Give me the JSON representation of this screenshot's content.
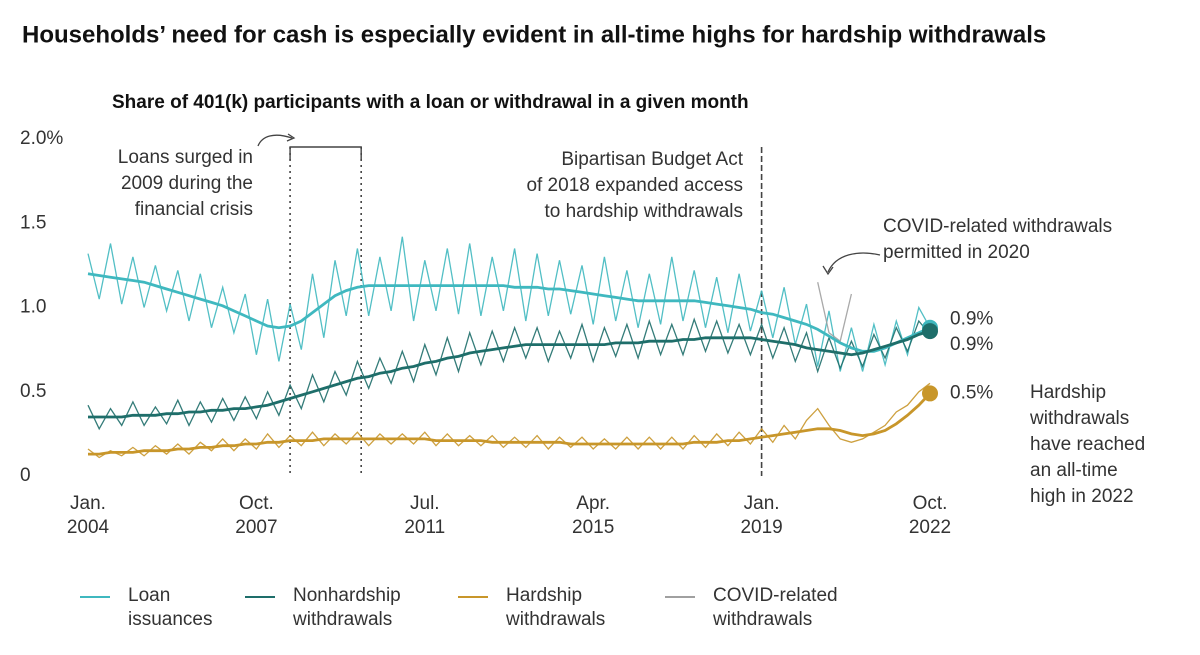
{
  "chart_data": {
    "type": "line",
    "title": "Households’ need for cash is especially evident in all-time highs for hardship withdrawals",
    "subtitle": "Share of 401(k) participants with a loan or withdrawal in a given month",
    "x": [
      2004,
      2004.25,
      2004.5,
      2004.75,
      2005,
      2005.25,
      2005.5,
      2005.75,
      2006,
      2006.25,
      2006.5,
      2006.75,
      2007,
      2007.25,
      2007.5,
      2007.75,
      2008,
      2008.25,
      2008.5,
      2008.75,
      2009,
      2009.25,
      2009.5,
      2009.75,
      2010,
      2010.25,
      2010.5,
      2010.75,
      2011,
      2011.25,
      2011.5,
      2011.75,
      2012,
      2012.25,
      2012.5,
      2012.75,
      2013,
      2013.25,
      2013.5,
      2013.75,
      2014,
      2014.25,
      2014.5,
      2014.75,
      2015,
      2015.25,
      2015.5,
      2015.75,
      2016,
      2016.25,
      2016.5,
      2016.75,
      2017,
      2017.25,
      2017.5,
      2017.75,
      2018,
      2018.25,
      2018.5,
      2018.75,
      2019,
      2019.25,
      2019.5,
      2019.75,
      2020,
      2020.25,
      2020.5,
      2020.75,
      2021,
      2021.25,
      2021.5,
      2021.75,
      2022,
      2022.25,
      2022.5,
      2022.75
    ],
    "xlim": [
      2004,
      2022.75
    ],
    "xticks": [
      {
        "value": 2004,
        "label": "Jan. 2004"
      },
      {
        "value": 2007.75,
        "label": "Oct. 2007"
      },
      {
        "value": 2011.5,
        "label": "Jul. 2011"
      },
      {
        "value": 2015.25,
        "label": "Apr. 2015"
      },
      {
        "value": 2019,
        "label": "Jan. 2019"
      },
      {
        "value": 2022.75,
        "label": "Oct. 2022"
      }
    ],
    "ylim": [
      0,
      2
    ],
    "yticks": [
      0,
      0.5,
      {
        "value": 1,
        "label": "1.0"
      },
      1.5,
      {
        "value": 2,
        "label": "2.0%"
      }
    ],
    "grid": false,
    "series": [
      {
        "name": "Loan issuances",
        "color": "#3fb8bf",
        "end_label": "0.9%",
        "values": [
          1.32,
          1.05,
          1.38,
          1.02,
          1.3,
          1.0,
          1.25,
          0.98,
          1.22,
          0.92,
          1.2,
          0.88,
          1.12,
          0.85,
          1.08,
          0.72,
          1.05,
          0.68,
          1.02,
          0.75,
          1.2,
          0.82,
          1.28,
          0.95,
          1.35,
          0.95,
          1.3,
          0.98,
          1.42,
          0.92,
          1.28,
          0.98,
          1.35,
          0.96,
          1.38,
          0.95,
          1.3,
          0.98,
          1.35,
          0.92,
          1.32,
          0.95,
          1.28,
          0.96,
          1.25,
          0.9,
          1.3,
          0.92,
          1.22,
          0.88,
          1.2,
          0.9,
          1.3,
          0.92,
          1.22,
          0.88,
          1.18,
          0.85,
          1.2,
          0.86,
          1.1,
          0.82,
          1.12,
          0.78,
          1.02,
          0.65,
          0.98,
          0.62,
          0.88,
          0.62,
          0.9,
          0.66,
          0.92,
          0.72,
          1.0,
          0.88
        ],
        "trend": [
          1.2,
          1.19,
          1.18,
          1.17,
          1.16,
          1.15,
          1.13,
          1.11,
          1.09,
          1.07,
          1.05,
          1.03,
          1.01,
          0.98,
          0.95,
          0.92,
          0.89,
          0.88,
          0.89,
          0.92,
          0.97,
          1.02,
          1.07,
          1.1,
          1.12,
          1.13,
          1.13,
          1.13,
          1.13,
          1.13,
          1.13,
          1.13,
          1.13,
          1.13,
          1.13,
          1.13,
          1.13,
          1.13,
          1.12,
          1.12,
          1.12,
          1.11,
          1.11,
          1.1,
          1.09,
          1.08,
          1.07,
          1.06,
          1.05,
          1.04,
          1.04,
          1.04,
          1.04,
          1.04,
          1.04,
          1.03,
          1.02,
          1.01,
          1.0,
          0.99,
          0.97,
          0.96,
          0.94,
          0.92,
          0.9,
          0.87,
          0.83,
          0.79,
          0.76,
          0.74,
          0.74,
          0.76,
          0.79,
          0.82,
          0.85,
          0.88
        ]
      },
      {
        "name": "Nonhardship withdrawals",
        "color": "#1e6e6a",
        "end_label": "0.9%",
        "values": [
          0.42,
          0.28,
          0.4,
          0.3,
          0.44,
          0.3,
          0.41,
          0.31,
          0.45,
          0.3,
          0.44,
          0.32,
          0.46,
          0.33,
          0.47,
          0.34,
          0.5,
          0.36,
          0.54,
          0.4,
          0.6,
          0.44,
          0.62,
          0.48,
          0.68,
          0.52,
          0.7,
          0.55,
          0.74,
          0.56,
          0.78,
          0.6,
          0.82,
          0.62,
          0.85,
          0.66,
          0.86,
          0.68,
          0.88,
          0.7,
          0.88,
          0.68,
          0.86,
          0.7,
          0.9,
          0.68,
          0.88,
          0.71,
          0.9,
          0.7,
          0.92,
          0.72,
          0.9,
          0.72,
          0.93,
          0.74,
          0.92,
          0.73,
          0.9,
          0.72,
          0.9,
          0.7,
          0.88,
          0.68,
          0.85,
          0.62,
          0.82,
          0.64,
          0.8,
          0.65,
          0.84,
          0.7,
          0.88,
          0.74,
          0.92,
          0.84
        ],
        "trend": [
          0.35,
          0.35,
          0.35,
          0.35,
          0.36,
          0.36,
          0.36,
          0.37,
          0.37,
          0.38,
          0.38,
          0.39,
          0.39,
          0.4,
          0.4,
          0.41,
          0.42,
          0.44,
          0.46,
          0.48,
          0.5,
          0.52,
          0.54,
          0.56,
          0.58,
          0.59,
          0.61,
          0.62,
          0.64,
          0.65,
          0.67,
          0.68,
          0.7,
          0.71,
          0.73,
          0.74,
          0.75,
          0.76,
          0.77,
          0.78,
          0.78,
          0.78,
          0.78,
          0.78,
          0.78,
          0.78,
          0.78,
          0.79,
          0.79,
          0.79,
          0.8,
          0.8,
          0.8,
          0.81,
          0.81,
          0.82,
          0.82,
          0.82,
          0.82,
          0.82,
          0.81,
          0.8,
          0.79,
          0.78,
          0.76,
          0.75,
          0.74,
          0.73,
          0.72,
          0.73,
          0.75,
          0.77,
          0.79,
          0.81,
          0.84,
          0.86
        ]
      },
      {
        "name": "Hardship withdrawals",
        "color": "#c8962a",
        "end_label": "0.5%",
        "values": [
          0.16,
          0.11,
          0.15,
          0.12,
          0.17,
          0.12,
          0.18,
          0.13,
          0.19,
          0.13,
          0.2,
          0.15,
          0.22,
          0.15,
          0.22,
          0.16,
          0.25,
          0.17,
          0.24,
          0.18,
          0.26,
          0.18,
          0.25,
          0.19,
          0.26,
          0.18,
          0.25,
          0.19,
          0.25,
          0.19,
          0.26,
          0.18,
          0.25,
          0.18,
          0.24,
          0.18,
          0.24,
          0.17,
          0.23,
          0.17,
          0.24,
          0.16,
          0.23,
          0.17,
          0.23,
          0.16,
          0.22,
          0.16,
          0.23,
          0.16,
          0.23,
          0.16,
          0.23,
          0.16,
          0.24,
          0.17,
          0.25,
          0.18,
          0.26,
          0.19,
          0.28,
          0.2,
          0.3,
          0.22,
          0.33,
          0.4,
          0.3,
          0.22,
          0.2,
          0.22,
          0.26,
          0.3,
          0.38,
          0.42,
          0.5,
          0.55
        ],
        "trend": [
          0.13,
          0.13,
          0.14,
          0.14,
          0.14,
          0.15,
          0.15,
          0.15,
          0.16,
          0.16,
          0.17,
          0.17,
          0.18,
          0.18,
          0.19,
          0.19,
          0.2,
          0.2,
          0.21,
          0.21,
          0.21,
          0.22,
          0.22,
          0.22,
          0.22,
          0.22,
          0.22,
          0.22,
          0.22,
          0.22,
          0.22,
          0.21,
          0.21,
          0.21,
          0.21,
          0.21,
          0.2,
          0.2,
          0.2,
          0.2,
          0.2,
          0.2,
          0.2,
          0.19,
          0.19,
          0.19,
          0.19,
          0.19,
          0.19,
          0.19,
          0.19,
          0.19,
          0.19,
          0.19,
          0.2,
          0.2,
          0.2,
          0.21,
          0.21,
          0.22,
          0.23,
          0.24,
          0.25,
          0.26,
          0.27,
          0.28,
          0.28,
          0.27,
          0.25,
          0.24,
          0.25,
          0.27,
          0.31,
          0.36,
          0.42,
          0.49
        ]
      },
      {
        "name": "COVID-related withdrawals",
        "color": "#a0a0a0",
        "values": [
          null,
          null,
          null,
          null,
          null,
          null,
          null,
          null,
          null,
          null,
          null,
          null,
          null,
          null,
          null,
          null,
          null,
          null,
          null,
          null,
          null,
          null,
          null,
          null,
          null,
          null,
          null,
          null,
          null,
          null,
          null,
          null,
          null,
          null,
          null,
          null,
          null,
          null,
          null,
          null,
          null,
          null,
          null,
          null,
          null,
          null,
          null,
          null,
          null,
          null,
          null,
          null,
          null,
          null,
          null,
          null,
          null,
          null,
          null,
          null,
          null,
          null,
          null,
          null,
          null,
          1.15,
          0.85,
          0.8,
          1.08,
          null,
          null,
          null,
          null,
          null,
          null,
          null
        ]
      }
    ],
    "event_lines": [
      {
        "x": 2008.5,
        "style": "dotted"
      },
      {
        "x": 2010.0833,
        "style": "dotted"
      },
      {
        "x": 2019,
        "style": "dashed"
      }
    ],
    "annotations": [
      {
        "lines": [
          "Loans surged in",
          "2009 during the",
          "financial crisis"
        ]
      },
      {
        "lines": [
          "Bipartisan Budget Act",
          "of 2018 expanded access",
          "to hardship withdrawals"
        ]
      },
      {
        "lines": [
          "COVID-related withdrawals",
          "permitted in 2020"
        ]
      },
      {
        "lines": [
          "Hardship",
          "withdrawals",
          "have reached",
          "an all-time",
          "high in 2022"
        ]
      }
    ]
  }
}
